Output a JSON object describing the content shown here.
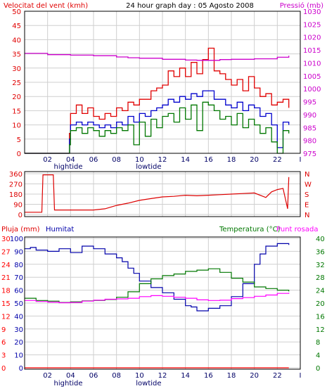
{
  "colors": {
    "wind_red": "#e00000",
    "wind_avg_blue": "#0000cc",
    "wind_green": "#007700",
    "pressure_magenta": "#cc00cc",
    "humidity_blue": "#0000aa",
    "temperature_green": "#007700",
    "dewpoint_magenta": "#ff00ff",
    "rain_red": "#ff0000",
    "direction_red": "#dd0000",
    "grid": "#cfcfcf",
    "frame": "#000000",
    "tide_text": "#000066"
  },
  "chart_data": [
    {
      "id": "wind-pressure",
      "type": "line",
      "title": "24 hour graph day : 05 Agosto 2008",
      "ylabel": "Velocitat del vent (kmh)",
      "y2label": "Pressió (mb)",
      "ylim": [
        0,
        50
      ],
      "y2lim": [
        975,
        1030
      ],
      "yticks": [
        0,
        5,
        10,
        15,
        20,
        25,
        30,
        35,
        40,
        45,
        50
      ],
      "y2ticks": [
        975,
        980,
        985,
        990,
        995,
        1000,
        1005,
        1010,
        1015,
        1020,
        1025,
        1030
      ],
      "xticks": [
        "02",
        "04",
        "06",
        "08",
        "10",
        "12",
        "14",
        "16",
        "18",
        "20",
        "22",
        "I"
      ],
      "tide_labels": [
        {
          "x": 3.8,
          "text": "hightide"
        },
        {
          "x": 10.8,
          "text": "lowtide"
        }
      ],
      "grid": true,
      "series": [
        {
          "color": "#e00000",
          "x": [
            0,
            3.8,
            3.9,
            4.0,
            4.5,
            5.0,
            5.5,
            6.0,
            6.5,
            7.0,
            7.5,
            8.0,
            8.5,
            9.0,
            9.5,
            10.0,
            10.5,
            11.0,
            11.5,
            12.0,
            12.5,
            13.0,
            13.5,
            14.0,
            14.5,
            15.0,
            15.5,
            16.0,
            16.5,
            17.0,
            17.5,
            18.0,
            18.5,
            19.0,
            19.5,
            20.0,
            20.5,
            21.0,
            21.5,
            22.0,
            22.5,
            23.0
          ],
          "y": [
            0,
            0,
            7,
            14,
            17,
            14,
            16,
            13,
            12,
            14,
            13,
            16,
            15,
            18,
            17,
            19,
            19,
            22,
            23,
            24,
            29,
            27,
            30,
            27,
            32,
            28,
            33,
            37,
            29,
            28,
            26,
            24,
            26,
            22,
            27,
            23,
            20,
            21,
            17,
            18,
            19,
            16
          ]
        },
        {
          "color": "#0000cc",
          "x": [
            0,
            3.8,
            3.9,
            4.0,
            4.5,
            5.0,
            5.5,
            6.0,
            6.5,
            7.0,
            7.5,
            8.0,
            8.5,
            9.0,
            9.5,
            10.0,
            10.5,
            11.0,
            11.5,
            12.0,
            12.5,
            13.0,
            13.5,
            14.0,
            14.5,
            15.0,
            15.5,
            16.0,
            16.5,
            17.0,
            17.5,
            18.0,
            18.5,
            19.0,
            19.5,
            20.0,
            20.5,
            21.0,
            21.5,
            22.0,
            22.5,
            23.0
          ],
          "y": [
            0,
            0,
            5,
            10,
            11,
            10,
            11,
            10,
            9,
            10,
            9,
            11,
            10,
            13,
            11,
            14,
            13,
            15,
            16,
            17,
            19,
            18,
            20,
            19,
            21,
            20,
            22,
            22,
            19,
            19,
            17,
            16,
            18,
            15,
            17,
            16,
            13,
            14,
            10,
            2,
            11,
            10
          ]
        },
        {
          "color": "#007700",
          "x": [
            0,
            3.8,
            3.9,
            4.0,
            4.5,
            5.0,
            5.5,
            6.0,
            6.5,
            7.0,
            7.5,
            8.0,
            8.5,
            9.0,
            9.5,
            10.0,
            10.5,
            11.0,
            11.5,
            12.0,
            12.5,
            13.0,
            13.5,
            14.0,
            14.5,
            15.0,
            15.5,
            16.0,
            16.5,
            17.0,
            17.5,
            18.0,
            18.5,
            19.0,
            19.5,
            20.0,
            20.5,
            21.0,
            21.5,
            22.0,
            22.5,
            23.0
          ],
          "y": [
            0,
            0,
            3,
            8,
            9,
            7,
            9,
            8,
            6,
            8,
            7,
            9,
            8,
            10,
            3,
            11,
            6,
            12,
            9,
            13,
            14,
            11,
            16,
            12,
            17,
            8,
            18,
            17,
            15,
            12,
            13,
            10,
            14,
            9,
            12,
            10,
            7,
            9,
            4,
            0,
            8,
            7
          ]
        },
        {
          "color": "#cc00cc",
          "axis": "y2",
          "x": [
            0,
            2,
            4,
            6,
            8,
            9,
            10,
            12,
            14,
            15,
            16,
            17,
            18,
            20,
            22,
            23
          ],
          "y": [
            1013.7,
            1013.2,
            1013.0,
            1012.8,
            1012.3,
            1012,
            1011.8,
            1011.4,
            1011.1,
            1011.0,
            1011.0,
            1011.3,
            1011.4,
            1011.6,
            1012.2,
            1012.8
          ]
        }
      ]
    },
    {
      "id": "wind-direction",
      "type": "line",
      "ylim": [
        0,
        360
      ],
      "yticks": [
        0,
        90,
        180,
        270,
        360
      ],
      "y2ticks": [
        "N",
        "E",
        "S",
        "W",
        "N"
      ],
      "grid": true,
      "series": [
        {
          "color": "#dd0000",
          "x": [
            0,
            1.5,
            1.6,
            2.5,
            2.6,
            6,
            7,
            8,
            9,
            10,
            11,
            12,
            13,
            14,
            15,
            16,
            17,
            18,
            19,
            20,
            21,
            21.5,
            22,
            22.5,
            22.9,
            23
          ],
          "y": [
            20,
            20,
            350,
            350,
            40,
            40,
            50,
            80,
            100,
            125,
            140,
            155,
            160,
            170,
            165,
            170,
            175,
            180,
            185,
            190,
            150,
            200,
            220,
            230,
            50,
            330
          ]
        }
      ]
    },
    {
      "id": "rain-humidity-temperature",
      "type": "line",
      "ylabels": [
        "Pluja (mm)",
        "Humitat"
      ],
      "y2labels": [
        "Temperatura (°C)",
        "Punt rosada"
      ],
      "y_rain_ticks": [
        0,
        3,
        6,
        9,
        12,
        15,
        18,
        21,
        24,
        27,
        30
      ],
      "y_humidity_ticks": [
        0,
        10,
        20,
        30,
        40,
        50,
        60,
        70,
        80,
        90,
        100
      ],
      "y2ticks": [
        0,
        4,
        8,
        12,
        16,
        20,
        24,
        28,
        32,
        36,
        40
      ],
      "xticks": [
        "02",
        "04",
        "06",
        "08",
        "10",
        "12",
        "14",
        "16",
        "18",
        "20",
        "22",
        "I"
      ],
      "tide_labels": [
        {
          "x": 3.8,
          "text": "hightide"
        },
        {
          "x": 10.8,
          "text": "lowtide"
        }
      ],
      "grid": true,
      "series": [
        {
          "color": "#0000aa",
          "axis": "humidity",
          "x": [
            0,
            0.5,
            1,
            2,
            3,
            4,
            5,
            6,
            7,
            8,
            8.5,
            9,
            9.5,
            10,
            11,
            12,
            13,
            14,
            14.5,
            15,
            16,
            17,
            18,
            19,
            20,
            20.5,
            21,
            22,
            22.5,
            23
          ],
          "y": [
            92,
            93,
            91,
            90,
            92,
            89,
            94,
            92,
            88,
            85,
            82,
            77,
            73,
            67,
            62,
            58,
            53,
            48,
            47,
            44,
            46,
            48,
            55,
            65,
            80,
            88,
            94,
            96,
            96,
            95
          ]
        },
        {
          "color": "#007700",
          "axis": "temperature",
          "x": [
            0,
            1,
            2,
            3,
            4,
            5,
            6,
            7,
            8,
            9,
            10,
            11,
            12,
            13,
            14,
            15,
            16,
            17,
            18,
            19,
            20,
            21,
            22,
            23
          ],
          "y": [
            21.5,
            20.8,
            20.6,
            20.2,
            20.4,
            20.7,
            20.8,
            21.1,
            21.8,
            23.5,
            26,
            27.5,
            28.5,
            29,
            29.8,
            30.2,
            30.6,
            29.5,
            27.7,
            26.5,
            25,
            24.5,
            24,
            23.6
          ]
        },
        {
          "color": "#ff00ff",
          "axis": "temperature",
          "x": [
            0,
            1,
            2,
            3,
            4,
            5,
            6,
            7,
            8,
            9,
            10,
            11,
            12,
            13,
            14,
            15,
            16,
            17,
            18,
            19,
            20,
            21,
            22,
            23
          ],
          "y": [
            20.8,
            20.5,
            20.3,
            20.1,
            20.2,
            20.6,
            20.9,
            21.2,
            21.3,
            21.5,
            22,
            22.3,
            22.1,
            21.8,
            21.5,
            21.0,
            20.8,
            20.9,
            21.4,
            21.7,
            22.1,
            22.5,
            23,
            23.2
          ]
        },
        {
          "color": "#ff0000",
          "axis": "rain",
          "x": [
            0,
            23
          ],
          "y": [
            0,
            0
          ]
        }
      ]
    }
  ]
}
